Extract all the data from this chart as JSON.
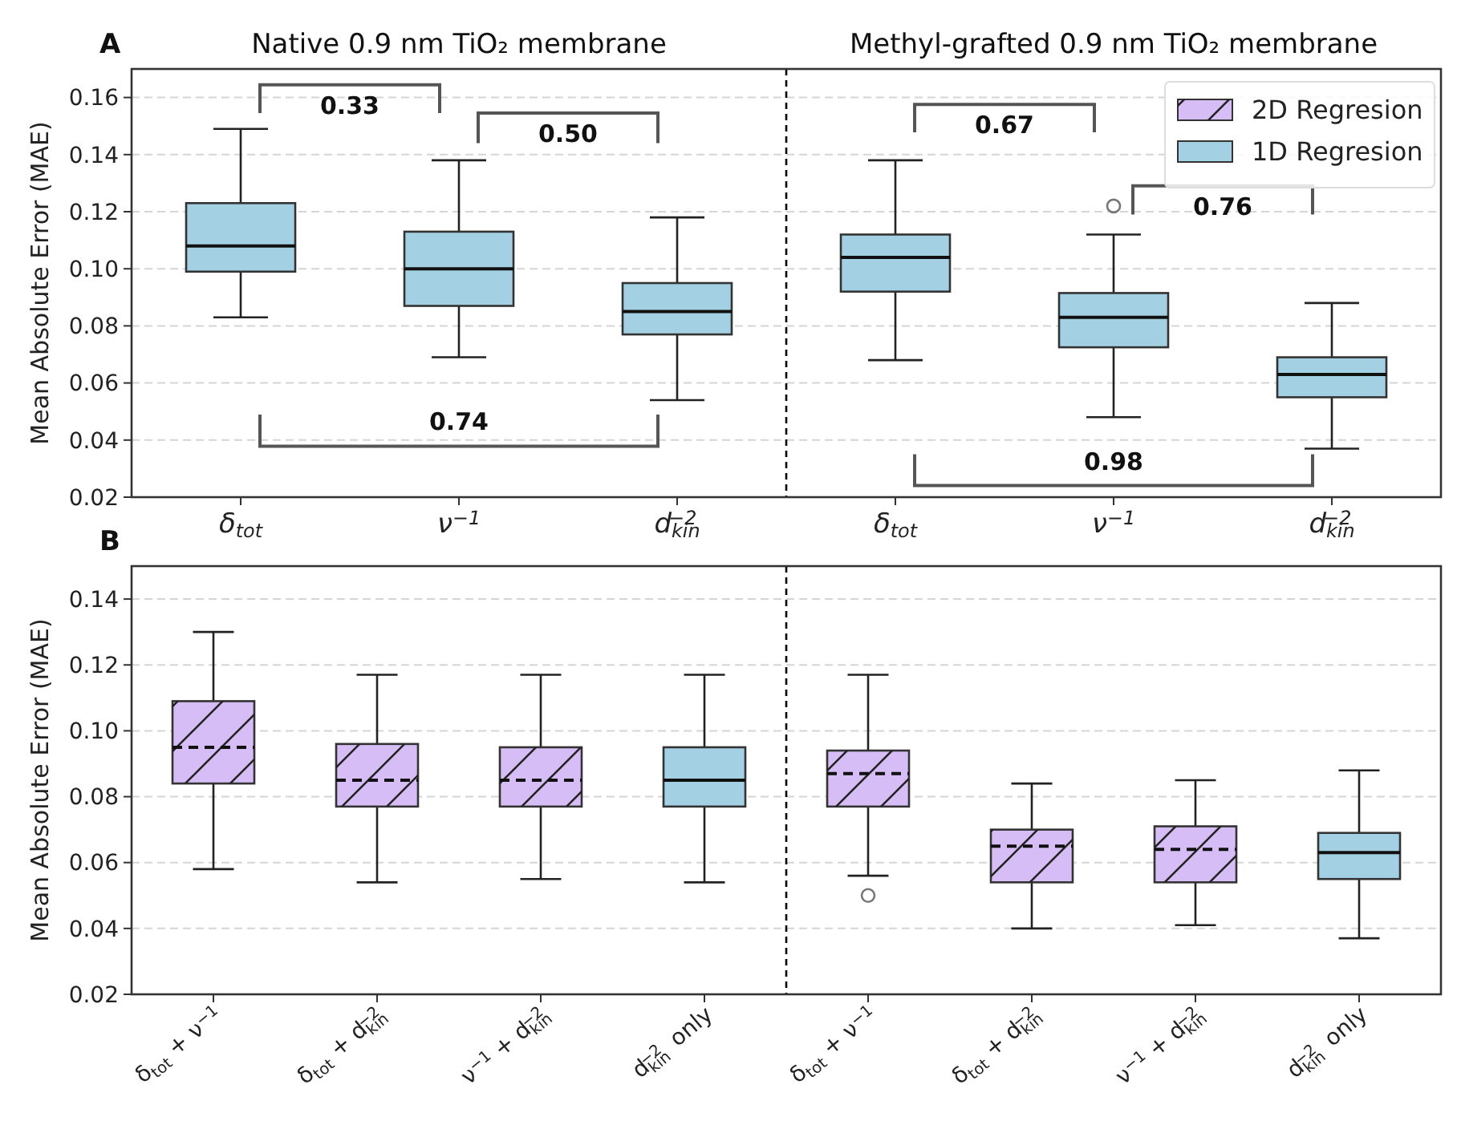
{
  "chart_data": [
    {
      "type": "box",
      "title": "A",
      "ylabel": "Mean Absolute Error (MAE)",
      "categories": [
        "δ$_{tot}$",
        "ν$^{−1}$",
        "d$_{kin}$$^{−2}$",
        "δ$_{tot}$",
        "ν$^{−1}$",
        "d$_{kin}$$^{−2}$"
      ],
      "ylim": [
        0.02,
        0.17
      ],
      "yticks": [
        0.02,
        0.04,
        0.06,
        0.08,
        {
          "value": 0.1,
          "label": "0.10"
        },
        0.12,
        0.14,
        0.16
      ],
      "grid": "y",
      "legend": "top right",
      "annotations": [
        "Native 0.9 nm TiO₂ membrane",
        "Methyl-grafted 0.9 nm TiO₂ membrane",
        "0.33",
        "0.50",
        "0.74",
        "0.67",
        "0.76",
        "0.98"
      ],
      "series": [
        {
          "name": "2D Regresion",
          "color": "#d6bdf6",
          "line_style": "dashed",
          "boxes": [
            null,
            null,
            null,
            null,
            null,
            null
          ]
        },
        {
          "name": "1D Regresion",
          "color": "#a3d0e3",
          "line_style": "solid",
          "boxes": [
            {
              "low": 0.083,
              "q1": 0.099,
              "median": 0.108,
              "q3": 0.123,
              "high": 0.149
            },
            {
              "low": 0.069,
              "q1": 0.087,
              "median": 0.1,
              "q3": 0.113,
              "high": 0.138
            },
            {
              "low": 0.054,
              "q1": 0.077,
              "median": 0.085,
              "q3": 0.095,
              "high": 0.118
            },
            {
              "low": 0.068,
              "q1": 0.092,
              "median": 0.104,
              "q3": 0.112,
              "high": 0.138
            },
            {
              "low": 0.048,
              "q1": 0.0725,
              "median": 0.083,
              "q3": 0.0915,
              "high": 0.112,
              "outliers": [
                0.122
              ]
            },
            {
              "low": 0.037,
              "q1": 0.055,
              "median": 0.063,
              "q3": 0.069,
              "high": 0.088
            }
          ]
        }
      ]
    },
    {
      "type": "box",
      "title": "B",
      "ylabel": "Mean Absolute Error (MAE)",
      "categories": [
        "δ$_{tot}$ + ν$^{−1}$",
        "δ$_{tot}$ + d$_{kin}$$^{−2}$",
        "ν$^{−1}$ + d$_{kin}$$^{−2}$",
        "d$_{kin}$$^{−2}$ only",
        "δ$_{tot}$ + ν$^{−1}$",
        "δ$_{tot}$ + d$_{kin}$$^{−2}$",
        "ν$^{−1}$ + d$_{kin}$$^{−2}$",
        "d$_{kin}$$^{−2}$ only"
      ],
      "ylim": [
        0.02,
        0.15
      ],
      "yticks": [
        0.02,
        0.04,
        0.06,
        0.08,
        {
          "value": 0.1,
          "label": "0.10"
        },
        0.12,
        0.14
      ],
      "grid": "y",
      "series": [
        {
          "color": "#d6bdf6",
          "line_style": "dashed",
          "boxes": [
            {
              "low": 0.058,
              "q1": 0.084,
              "median": 0.095,
              "q3": 0.109,
              "high": 0.13
            },
            {
              "low": 0.054,
              "q1": 0.077,
              "median": 0.085,
              "q3": 0.096,
              "high": 0.117
            },
            {
              "low": 0.055,
              "q1": 0.077,
              "median": 0.085,
              "q3": 0.095,
              "high": 0.117
            },
            null,
            {
              "low": 0.056,
              "q1": 0.077,
              "median": 0.087,
              "q3": 0.094,
              "high": 0.117,
              "outliers": [
                0.05
              ]
            },
            {
              "low": 0.04,
              "q1": 0.054,
              "median": 0.065,
              "q3": 0.07,
              "high": 0.084
            },
            {
              "low": 0.041,
              "q1": 0.054,
              "median": 0.064,
              "q3": 0.071,
              "high": 0.085
            },
            null
          ]
        },
        {
          "color": "#a3d0e3",
          "line_style": "solid",
          "boxes": [
            null,
            null,
            null,
            {
              "low": 0.054,
              "q1": 0.077,
              "median": 0.085,
              "q3": 0.095,
              "high": 0.117
            },
            null,
            null,
            null,
            {
              "low": 0.037,
              "q1": 0.055,
              "median": 0.063,
              "q3": 0.069,
              "high": 0.088
            }
          ]
        }
      ]
    }
  ]
}
